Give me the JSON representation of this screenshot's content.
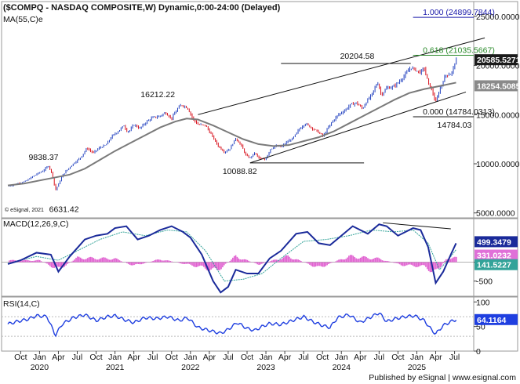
{
  "header": {
    "title": "($COMPQ - NASDAQ COMPOSITE,W) Dynamic,0:00-24:00 (Delayed)",
    "ma_label": "MA(55,C)e"
  },
  "watermark": "© eSignal, 2021",
  "footer": "Published by eSignal | www.esignal.com",
  "colors": {
    "price_up": "#1f3fbf",
    "price_down": "#d8101c",
    "ma": "#7a7a7a",
    "macd": "#1a2a9a",
    "signal": "#33a399",
    "histogram": "#e060d0",
    "rsi": "#1f3fe0",
    "fib": "#1a1aaa",
    "fib_618": "#2a8a2a"
  },
  "chart_data": [
    {
      "type": "candlestick",
      "title": "($COMPQ - NASDAQ COMPOSITE,W) Dynamic,0:00-24:00 (Delayed)",
      "ylim": [
        4500,
        26500
      ],
      "y_ticks": [
        {
          "value": 5000,
          "label": "5000.0000"
        },
        {
          "value": 10000,
          "label": "10000.0000"
        },
        {
          "value": 15000,
          "label": "15000.0000"
        },
        {
          "value": 20000,
          "label": "20000.0000"
        },
        {
          "value": 25000,
          "label": "25000.0000"
        }
      ],
      "x_range": [
        2019.58,
        2025.65
      ],
      "series": [
        {
          "name": "$COMPQ",
          "x": [
            2019.58,
            2019.65,
            2019.73,
            2019.81,
            2019.88,
            2019.96,
            2020.04,
            2020.12,
            2020.17,
            2020.21,
            2020.25,
            2020.31,
            2020.38,
            2020.46,
            2020.54,
            2020.63,
            2020.71,
            2020.79,
            2020.88,
            2020.96,
            2021.04,
            2021.12,
            2021.16,
            2021.2,
            2021.25,
            2021.33,
            2021.42,
            2021.5,
            2021.58,
            2021.67,
            2021.75,
            2021.83,
            2021.88,
            2021.96,
            2022.04,
            2022.1,
            2022.2,
            2022.29,
            2022.37,
            2022.45,
            2022.52,
            2022.6,
            2022.67,
            2022.74,
            2022.79,
            2022.85,
            2022.92,
            2022.99,
            2023.06,
            2023.13,
            2023.2,
            2023.28,
            2023.36,
            2023.44,
            2023.52,
            2023.6,
            2023.68,
            2023.76,
            2023.82,
            2023.88,
            2023.96,
            2024.04,
            2024.12,
            2024.2,
            2024.28,
            2024.33,
            2024.4,
            2024.48,
            2024.53,
            2024.6,
            2024.68,
            2024.76,
            2024.84,
            2024.92,
            2024.97,
            2025.04,
            2025.1,
            2025.15,
            2025.2,
            2025.25,
            2025.3,
            2025.38,
            2025.46,
            2025.52
          ],
          "y": [
            7700,
            7850,
            8050,
            8200,
            8550,
            8950,
            9250,
            9800,
            8900,
            7300,
            7900,
            8900,
            9500,
            10100,
            10600,
            11600,
            11100,
            11600,
            11900,
            12800,
            13300,
            13900,
            13300,
            13400,
            14000,
            13600,
            14300,
            14700,
            14800,
            15200,
            14600,
            15600,
            16000,
            15700,
            14500,
            14000,
            13900,
            12800,
            11800,
            11200,
            11500,
            12600,
            11900,
            10800,
            10600,
            11100,
            10500,
            10400,
            11500,
            11800,
            11700,
            12200,
            12600,
            13500,
            14100,
            13700,
            13300,
            12800,
            13600,
            14300,
            15000,
            15400,
            16000,
            16200,
            15600,
            16300,
            17000,
            18300,
            17000,
            17700,
            17800,
            18300,
            19000,
            19800,
            19600,
            19300,
            19700,
            18200,
            17500,
            16200,
            17500,
            19000,
            19200,
            20585.5271
          ]
        },
        {
          "name": "MA(55,C)e",
          "x": [
            2019.58,
            2019.8,
            2020.0,
            2020.2,
            2020.4,
            2020.6,
            2020.8,
            2021.0,
            2021.2,
            2021.4,
            2021.6,
            2021.8,
            2021.95,
            2022.1,
            2022.3,
            2022.5,
            2022.7,
            2022.9,
            2023.1,
            2023.3,
            2023.5,
            2023.7,
            2023.9,
            2024.1,
            2024.3,
            2024.5,
            2024.7,
            2024.9,
            2025.1,
            2025.3,
            2025.52
          ],
          "y": [
            7800,
            8000,
            8300,
            8600,
            8900,
            9500,
            10400,
            11300,
            12100,
            12900,
            13700,
            14300,
            14600,
            14500,
            13900,
            13200,
            12500,
            12000,
            11800,
            11900,
            12300,
            12700,
            13300,
            14100,
            14900,
            15700,
            16500,
            17200,
            17600,
            17900,
            18254.5085
          ]
        }
      ],
      "annotations": [
        {
          "text": "9838.37",
          "x": 2019.96,
          "y": 9838.37
        },
        {
          "text": "6631.42",
          "x": 2020.21,
          "y": 6631.42
        },
        {
          "text": "16212.22",
          "x": 2021.88,
          "y": 16212.22
        },
        {
          "text": "10088.82",
          "x": 2022.79,
          "y": 10088.82
        },
        {
          "text": "20204.58",
          "x": 2024.97,
          "y": 20204.58
        },
        {
          "text": "14784.03",
          "x": 2025.25,
          "y": 14784.03
        }
      ],
      "fibonacci": [
        {
          "text": "1.000 (24899.7844)",
          "value": 24899.7844
        },
        {
          "text": "0.618 (21035.5667)",
          "value": 21035.5667
        },
        {
          "text": "0.000 (14784.0313)",
          "value": 14784.0313
        }
      ],
      "support_level": 10088.82,
      "resistance_level": 20204.58,
      "channel": {
        "upper": [
          [
            2022.1,
            15000
          ],
          [
            2025.9,
            22800
          ]
        ],
        "lower": [
          [
            2022.79,
            10088.82
          ],
          [
            2025.65,
            17300
          ]
        ]
      },
      "last_values": [
        {
          "name": "$COMPQ",
          "label": "20585.5271",
          "value": 20585.5271
        },
        {
          "name": "MA(55,C)e",
          "label": "18254.5085",
          "value": 18254.5085
        }
      ]
    },
    {
      "type": "line",
      "title": "MACD(12,26,9,C)",
      "ylim": [
        -900,
        1150
      ],
      "y_ticks": [
        {
          "value": 0,
          "label": "0"
        },
        {
          "value": -500,
          "label": "-500"
        }
      ],
      "series": [
        {
          "name": "MACD",
          "x": [
            2019.58,
            2019.75,
            2019.96,
            2020.15,
            2020.25,
            2020.4,
            2020.6,
            2020.75,
            2020.9,
            2021.0,
            2021.15,
            2021.3,
            2021.45,
            2021.6,
            2021.75,
            2021.9,
            2022.0,
            2022.15,
            2022.3,
            2022.4,
            2022.5,
            2022.6,
            2022.75,
            2022.9,
            2023.05,
            2023.2,
            2023.4,
            2023.55,
            2023.7,
            2023.85,
            2024.0,
            2024.15,
            2024.35,
            2024.5,
            2024.6,
            2024.75,
            2024.95,
            2025.05,
            2025.15,
            2025.25,
            2025.35,
            2025.45,
            2025.52
          ],
          "y": [
            -50,
            50,
            250,
            200,
            -250,
            150,
            600,
            700,
            750,
            900,
            950,
            600,
            700,
            850,
            950,
            800,
            650,
            200,
            -500,
            -800,
            -650,
            -200,
            -300,
            -300,
            100,
            300,
            750,
            800,
            500,
            450,
            700,
            950,
            750,
            1000,
            950,
            700,
            900,
            850,
            400,
            -550,
            -250,
            200,
            499.3479
          ]
        },
        {
          "name": "Signal",
          "x": [
            2019.58,
            2019.96,
            2020.25,
            2020.5,
            2020.8,
            2021.1,
            2021.4,
            2021.7,
            2021.95,
            2022.2,
            2022.45,
            2022.7,
            2022.95,
            2023.2,
            2023.5,
            2023.8,
            2024.1,
            2024.4,
            2024.7,
            2024.95,
            2025.15,
            2025.3,
            2025.45,
            2025.52
          ],
          "y": [
            -30,
            150,
            50,
            300,
            600,
            800,
            700,
            850,
            800,
            300,
            -500,
            -450,
            -300,
            100,
            550,
            600,
            700,
            850,
            800,
            850,
            500,
            -200,
            150,
            331.0232
          ]
        },
        {
          "name": "Histogram",
          "x": [
            2020.0,
            2020.25,
            2020.5,
            2021.0,
            2021.25,
            2021.6,
            2022.1,
            2022.35,
            2022.6,
            2022.9,
            2023.3,
            2023.7,
            2024.1,
            2024.5,
            2024.8,
            2025.1,
            2025.25,
            2025.4,
            2025.52
          ],
          "y": [
            60,
            -250,
            150,
            120,
            -120,
            100,
            -150,
            -300,
            200,
            -80,
            200,
            -200,
            200,
            120,
            -100,
            -150,
            -380,
            150,
            141.5227
          ]
        }
      ],
      "trendline": [
        [
          2024.55,
          1040
        ],
        [
          2025.45,
          880
        ]
      ],
      "last_values": [
        {
          "name": "MACD",
          "label": "499.3479",
          "value": 499.3479
        },
        {
          "name": "Signal",
          "label": "331.0232",
          "value": 331.0232
        },
        {
          "name": "Histogram",
          "label": "141.5227",
          "value": 141.5227
        }
      ]
    },
    {
      "type": "line",
      "title": "RSI(14,C)",
      "ylim": [
        0,
        110
      ],
      "y_ticks": [
        {
          "value": 100,
          "label": "100"
        },
        {
          "value": 50,
          "label": "50"
        },
        {
          "value": 0,
          "label": "0"
        }
      ],
      "reference_lines": [
        70,
        30
      ],
      "series": [
        {
          "name": "RSI",
          "x": [
            2019.58,
            2019.7,
            2019.85,
            2019.96,
            2020.1,
            2020.21,
            2020.3,
            2020.45,
            2020.6,
            2020.75,
            2020.9,
            2021.0,
            2021.12,
            2021.25,
            2021.4,
            2021.55,
            2021.7,
            2021.85,
            2021.96,
            2022.1,
            2022.25,
            2022.4,
            2022.5,
            2022.62,
            2022.75,
            2022.85,
            2022.95,
            2023.05,
            2023.2,
            2023.35,
            2023.5,
            2023.62,
            2023.75,
            2023.85,
            2023.95,
            2024.1,
            2024.25,
            2024.35,
            2024.5,
            2024.6,
            2024.72,
            2024.85,
            2024.97,
            2025.1,
            2025.2,
            2025.25,
            2025.35,
            2025.45,
            2025.52
          ],
          "y": [
            55,
            60,
            65,
            72,
            70,
            32,
            55,
            68,
            74,
            62,
            70,
            72,
            64,
            58,
            68,
            66,
            70,
            62,
            68,
            48,
            42,
            36,
            44,
            58,
            46,
            42,
            50,
            56,
            54,
            62,
            70,
            60,
            52,
            48,
            68,
            74,
            58,
            66,
            78,
            60,
            66,
            70,
            72,
            62,
            42,
            35,
            52,
            60,
            64.1164
          ]
        }
      ],
      "last_values": [
        {
          "name": "RSI",
          "label": "64.1164",
          "value": 64.1164
        }
      ]
    }
  ],
  "x_axis": {
    "month_ticks": [
      {
        "x": 2019.75,
        "label": "Oct"
      },
      {
        "x": 2020.0,
        "label": "Jan"
      },
      {
        "x": 2020.25,
        "label": "Apr"
      },
      {
        "x": 2020.5,
        "label": "Jul"
      },
      {
        "x": 2020.75,
        "label": "Oct"
      },
      {
        "x": 2021.0,
        "label": "Jan"
      },
      {
        "x": 2021.25,
        "label": "Apr"
      },
      {
        "x": 2021.5,
        "label": "Jul"
      },
      {
        "x": 2021.75,
        "label": "Oct"
      },
      {
        "x": 2022.0,
        "label": "Jan"
      },
      {
        "x": 2022.25,
        "label": "Apr"
      },
      {
        "x": 2022.5,
        "label": "Jul"
      },
      {
        "x": 2022.75,
        "label": "Oct"
      },
      {
        "x": 2023.0,
        "label": "Jan"
      },
      {
        "x": 2023.25,
        "label": "Apr"
      },
      {
        "x": 2023.5,
        "label": "Jul"
      },
      {
        "x": 2023.75,
        "label": "Oct"
      },
      {
        "x": 2024.0,
        "label": "Jan"
      },
      {
        "x": 2024.25,
        "label": "Apr"
      },
      {
        "x": 2024.5,
        "label": "Jul"
      },
      {
        "x": 2024.75,
        "label": "Oct"
      },
      {
        "x": 2025.0,
        "label": "Jan"
      },
      {
        "x": 2025.25,
        "label": "Apr"
      },
      {
        "x": 2025.5,
        "label": "Jul"
      }
    ],
    "year_ticks": [
      {
        "x": 2020.0,
        "label": "2020"
      },
      {
        "x": 2021.0,
        "label": "2021"
      },
      {
        "x": 2022.0,
        "label": "2022"
      },
      {
        "x": 2023.0,
        "label": "2023"
      },
      {
        "x": 2024.0,
        "label": "2024"
      },
      {
        "x": 2025.0,
        "label": "2025"
      }
    ]
  }
}
